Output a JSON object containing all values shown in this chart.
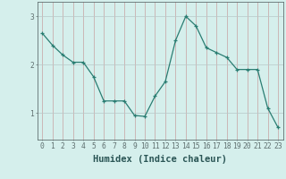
{
  "x": [
    0,
    1,
    2,
    3,
    4,
    5,
    6,
    7,
    8,
    9,
    10,
    11,
    12,
    13,
    14,
    15,
    16,
    17,
    18,
    19,
    20,
    21,
    22,
    23
  ],
  "y": [
    2.65,
    2.4,
    2.2,
    2.05,
    2.05,
    1.75,
    1.25,
    1.25,
    1.25,
    0.95,
    0.93,
    1.35,
    1.65,
    2.5,
    3.0,
    2.8,
    2.35,
    2.25,
    2.15,
    1.9,
    1.9,
    1.9,
    1.1,
    0.7
  ],
  "xlabel": "Humidex (Indice chaleur)",
  "yticks": [
    1,
    2,
    3
  ],
  "xticks": [
    0,
    1,
    2,
    3,
    4,
    5,
    6,
    7,
    8,
    9,
    10,
    11,
    12,
    13,
    14,
    15,
    16,
    17,
    18,
    19,
    20,
    21,
    22,
    23
  ],
  "xlim": [
    -0.5,
    23.5
  ],
  "ylim": [
    0.45,
    3.3
  ],
  "line_color": "#2a7d72",
  "marker_color": "#2a7d72",
  "bg_color": "#d5efec",
  "grid_color_v": "#c8a0a0",
  "grid_color_h": "#b8c8c8",
  "axis_color": "#607070",
  "tick_label_fontsize": 5.8,
  "xlabel_fontsize": 7.5
}
